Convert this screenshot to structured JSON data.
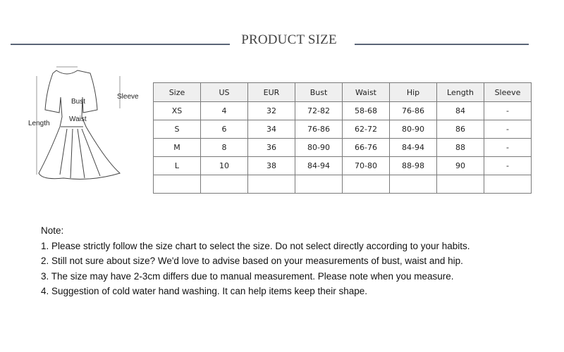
{
  "header": {
    "title": "PRODUCT SIZE"
  },
  "diagram": {
    "labels": {
      "bust": "Bust",
      "waist": "Waist",
      "sleeve": "Sleeve",
      "length": "Length"
    }
  },
  "table": {
    "headers": [
      "Size",
      "US",
      "EUR",
      "Bust",
      "Waist",
      "Hip",
      "Length",
      "Sleeve"
    ],
    "rows": [
      [
        "XS",
        "4",
        "32",
        "72-82",
        "58-68",
        "76-86",
        "84",
        "-"
      ],
      [
        "S",
        "6",
        "34",
        "76-86",
        "62-72",
        "80-90",
        "86",
        "-"
      ],
      [
        "M",
        "8",
        "36",
        "80-90",
        "66-76",
        "84-94",
        "88",
        "-"
      ],
      [
        "L",
        "10",
        "38",
        "84-94",
        "70-80",
        "88-98",
        "90",
        "-"
      ],
      [
        "",
        "",
        "",
        "",
        "",
        "",
        "",
        ""
      ]
    ]
  },
  "notes": {
    "heading": "Note:",
    "items": [
      "1. Please strictly follow the size chart to select the size. Do not select directly according to your habits.",
      "2. Still not sure about size? We'd love to advise based on your measurements of bust, waist and hip.",
      "3. The size may have 2-3cm differs due to manual measurement. Please note when you measure.",
      "4. Suggestion of cold water hand washing. It can help items keep their shape."
    ]
  }
}
